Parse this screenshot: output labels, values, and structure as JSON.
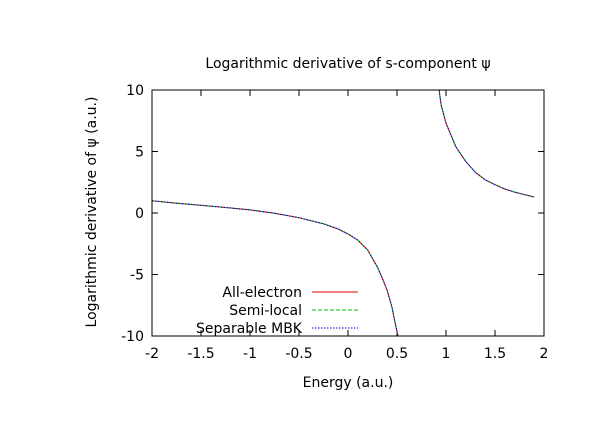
{
  "chart_data": {
    "type": "line",
    "title": "Logarithmic derivative of s-component ψ",
    "xlabel": "Energy (a.u.)",
    "ylabel": "Logarithmic derivative of ψ (a.u.)",
    "xlim": [
      -2,
      2
    ],
    "ylim": [
      -10,
      10
    ],
    "xticks": [
      -2,
      -1.5,
      -1,
      -0.5,
      0,
      0.5,
      1,
      1.5,
      2
    ],
    "yticks": [
      -10,
      -5,
      0,
      5,
      10
    ],
    "xtick_labels": [
      "-2",
      "-1.5",
      "-1",
      "-0.5",
      "0",
      "0.5",
      "1",
      "1.5",
      "2"
    ],
    "ytick_labels": [
      "-10",
      "-5",
      "0",
      "5",
      "10"
    ],
    "grid": false,
    "legend_position": "bottom-left",
    "series": [
      {
        "name": "All-electron",
        "color": "#e00000",
        "dash": "solid",
        "segments": [
          [
            [
              -2.0,
              1.0
            ],
            [
              -1.75,
              0.8
            ],
            [
              -1.5,
              0.63
            ],
            [
              -1.25,
              0.45
            ],
            [
              -1.0,
              0.25
            ],
            [
              -0.75,
              -0.02
            ],
            [
              -0.5,
              -0.38
            ],
            [
              -0.25,
              -0.88
            ],
            [
              -0.1,
              -1.3
            ],
            [
              0.0,
              -1.7
            ],
            [
              0.1,
              -2.2
            ],
            [
              0.2,
              -3.0
            ],
            [
              0.3,
              -4.4
            ],
            [
              0.35,
              -5.3
            ],
            [
              0.4,
              -6.3
            ],
            [
              0.45,
              -7.7
            ],
            [
              0.48,
              -8.9
            ],
            [
              0.51,
              -10.0
            ]
          ],
          [
            [
              0.93,
              10.0
            ],
            [
              0.95,
              8.8
            ],
            [
              1.0,
              7.3
            ],
            [
              1.1,
              5.4
            ],
            [
              1.2,
              4.2
            ],
            [
              1.3,
              3.3
            ],
            [
              1.4,
              2.7
            ],
            [
              1.5,
              2.3
            ],
            [
              1.6,
              1.95
            ],
            [
              1.7,
              1.7
            ],
            [
              1.8,
              1.5
            ],
            [
              1.9,
              1.3
            ]
          ]
        ]
      },
      {
        "name": "Semi-local",
        "color": "#00c000",
        "dash": "dashed",
        "segments": [
          [
            [
              -2.0,
              1.0
            ],
            [
              -1.75,
              0.8
            ],
            [
              -1.5,
              0.63
            ],
            [
              -1.25,
              0.45
            ],
            [
              -1.0,
              0.25
            ],
            [
              -0.75,
              -0.02
            ],
            [
              -0.5,
              -0.38
            ],
            [
              -0.25,
              -0.88
            ],
            [
              -0.1,
              -1.3
            ],
            [
              0.0,
              -1.7
            ],
            [
              0.1,
              -2.2
            ],
            [
              0.2,
              -3.0
            ],
            [
              0.3,
              -4.4
            ],
            [
              0.35,
              -5.3
            ],
            [
              0.4,
              -6.3
            ],
            [
              0.45,
              -7.7
            ],
            [
              0.48,
              -8.9
            ],
            [
              0.51,
              -10.0
            ]
          ],
          [
            [
              0.93,
              10.0
            ],
            [
              0.95,
              8.8
            ],
            [
              1.0,
              7.3
            ],
            [
              1.1,
              5.4
            ],
            [
              1.2,
              4.2
            ],
            [
              1.3,
              3.3
            ],
            [
              1.4,
              2.7
            ],
            [
              1.5,
              2.3
            ],
            [
              1.6,
              1.95
            ],
            [
              1.7,
              1.7
            ],
            [
              1.8,
              1.5
            ],
            [
              1.9,
              1.3
            ]
          ]
        ]
      },
      {
        "name": "Separable MBK",
        "color": "#0000d0",
        "dash": "dotted",
        "segments": [
          [
            [
              -2.0,
              1.0
            ],
            [
              -1.75,
              0.8
            ],
            [
              -1.5,
              0.63
            ],
            [
              -1.25,
              0.45
            ],
            [
              -1.0,
              0.25
            ],
            [
              -0.75,
              -0.02
            ],
            [
              -0.5,
              -0.38
            ],
            [
              -0.25,
              -0.88
            ],
            [
              -0.1,
              -1.3
            ],
            [
              0.0,
              -1.7
            ],
            [
              0.1,
              -2.2
            ],
            [
              0.2,
              -3.0
            ],
            [
              0.3,
              -4.4
            ],
            [
              0.35,
              -5.3
            ],
            [
              0.4,
              -6.3
            ],
            [
              0.45,
              -7.7
            ],
            [
              0.48,
              -8.9
            ],
            [
              0.51,
              -10.0
            ]
          ],
          [
            [
              0.93,
              10.0
            ],
            [
              0.95,
              8.8
            ],
            [
              1.0,
              7.3
            ],
            [
              1.1,
              5.4
            ],
            [
              1.2,
              4.2
            ],
            [
              1.3,
              3.3
            ],
            [
              1.4,
              2.7
            ],
            [
              1.5,
              2.3
            ],
            [
              1.6,
              1.95
            ],
            [
              1.7,
              1.7
            ],
            [
              1.8,
              1.5
            ],
            [
              1.9,
              1.3
            ]
          ]
        ]
      }
    ]
  }
}
